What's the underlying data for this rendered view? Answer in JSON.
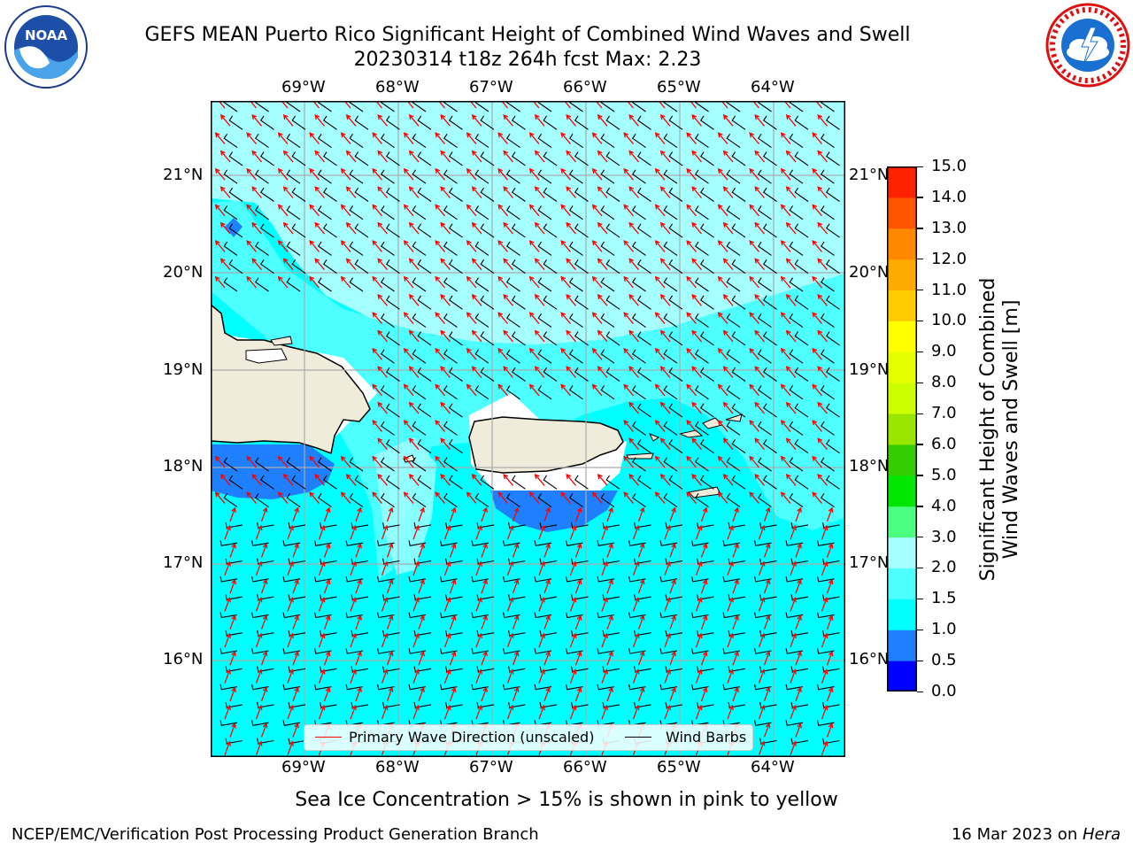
{
  "title": {
    "line1": "GEFS MEAN Puerto Rico Significant Height of Combined Wind Waves and Swell",
    "line2": "20230314 t18z 264h fcst   Max: 2.23"
  },
  "logos": {
    "noaa": {
      "text": "NOAA",
      "icon": "noaa-seal-icon"
    },
    "nws": {
      "icon": "nws-seal-icon"
    }
  },
  "axes": {
    "lon_labels": [
      "69°W",
      "68°W",
      "67°W",
      "66°W",
      "65°W",
      "64°W"
    ],
    "lat_labels": [
      "21°N",
      "20°N",
      "19°N",
      "18°N",
      "17°N",
      "16°N"
    ]
  },
  "chart_data": {
    "type": "heatmap",
    "variable": "Significant Height of Combined Wind Waves and Swell [m]",
    "lon_range": [
      -70.0,
      -63.25
    ],
    "lat_range": [
      15.0,
      21.75
    ],
    "lon_ticks": [
      -69,
      -68,
      -67,
      -66,
      -65,
      -64
    ],
    "lat_ticks": [
      21,
      20,
      19,
      18,
      17,
      16
    ],
    "max_value": 2.23,
    "colorbar": {
      "label": "Significant Height of Combined Wind Waves and Swell [m]",
      "label_line1": "Significant Height of Combined",
      "label_line2": "Wind Waves and Swell [m]",
      "boundaries": [
        0.0,
        0.5,
        1.0,
        1.5,
        2.0,
        3.0,
        4.0,
        5.0,
        6.0,
        7.0,
        8.0,
        9.0,
        10.0,
        11.0,
        12.0,
        13.0,
        14.0,
        15.0
      ],
      "tick_labels": [
        "15.0",
        "14.0",
        "13.0",
        "12.0",
        "11.0",
        "10.0",
        "9.0",
        "8.0",
        "7.0",
        "6.0",
        "5.0",
        "4.0",
        "3.0",
        "2.0",
        "1.5",
        "1.0",
        "0.5",
        "0.0"
      ],
      "colors": [
        "#0000ff",
        "#1e80ff",
        "#00ffff",
        "#4dffff",
        "#a6ffff",
        "#4dff80",
        "#00e600",
        "#33cc00",
        "#99e600",
        "#ccff00",
        "#e6ff00",
        "#ffff00",
        "#ffcc00",
        "#ffaa00",
        "#ff8800",
        "#ff5500",
        "#ff2200"
      ]
    },
    "colors": {
      "land": "#f0ecdc",
      "ocean_1_1_5": "#00ffff",
      "ocean_1_5_2": "#4dffff",
      "ocean_2_3": "#a6ffff",
      "ocean_0_5_1": "#1e80ff",
      "grid": "#aaaaaa",
      "wave_arrow": "#ff0000",
      "wind_barb": "#000000"
    }
  },
  "legend": {
    "wave_label": "Primary Wave Direction (unscaled)",
    "barb_label": "Wind Barbs"
  },
  "note": "Sea Ice Concentration > 15% is shown in pink to yellow",
  "footer": {
    "left": "NCEP/EMC/Verification Post Processing Product Generation Branch",
    "right_date": "16 Mar 2023 on ",
    "right_host": "Hera"
  }
}
